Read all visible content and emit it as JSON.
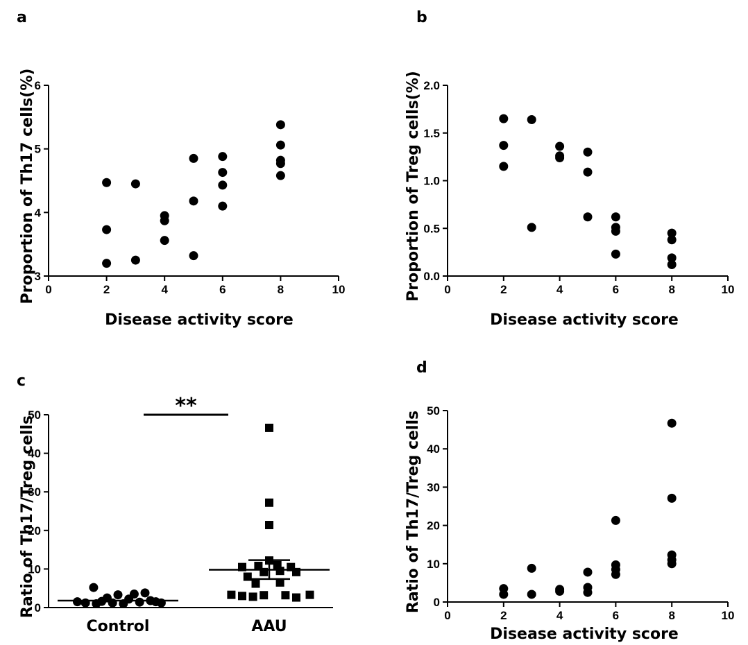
{
  "chart_data": [
    {
      "panel": "a",
      "type": "scatter",
      "xlabel": "Disease  activity  score",
      "ylabel": "Proportion  of  Th17  cells(%)",
      "xlim": [
        0,
        10
      ],
      "ylim": [
        3,
        6
      ],
      "xticks": [
        "0",
        "2",
        "4",
        "6",
        "8",
        "10"
      ],
      "yticks": [
        "3",
        "4",
        "5",
        "6"
      ],
      "points": [
        [
          2,
          4.47
        ],
        [
          2,
          3.73
        ],
        [
          2,
          3.2
        ],
        [
          3,
          4.45
        ],
        [
          3,
          3.25
        ],
        [
          4,
          3.95
        ],
        [
          4,
          3.87
        ],
        [
          4,
          3.56
        ],
        [
          5,
          4.85
        ],
        [
          5,
          4.18
        ],
        [
          5,
          3.32
        ],
        [
          6,
          4.88
        ],
        [
          6,
          4.63
        ],
        [
          6,
          4.43
        ],
        [
          6,
          4.1
        ],
        [
          8,
          5.38
        ],
        [
          8,
          5.06
        ],
        [
          8,
          4.82
        ],
        [
          8,
          4.77
        ],
        [
          8,
          4.58
        ]
      ]
    },
    {
      "panel": "b",
      "type": "scatter",
      "xlabel": "Disease  activity  score",
      "ylabel": "Proportion  of  Treg  cells(%)",
      "xlim": [
        0,
        10
      ],
      "ylim": [
        0,
        2
      ],
      "xticks": [
        "0",
        "2",
        "4",
        "6",
        "8",
        "10"
      ],
      "yticks": [
        "0.0",
        "0.5",
        "1.0",
        "1.5",
        "2.0"
      ],
      "points": [
        [
          2,
          1.65
        ],
        [
          2,
          1.37
        ],
        [
          2,
          1.15
        ],
        [
          3,
          1.64
        ],
        [
          3,
          0.51
        ],
        [
          4,
          1.36
        ],
        [
          4,
          1.26
        ],
        [
          4,
          1.24
        ],
        [
          5,
          1.3
        ],
        [
          5,
          1.09
        ],
        [
          5,
          0.62
        ],
        [
          6,
          0.62
        ],
        [
          6,
          0.51
        ],
        [
          6,
          0.47
        ],
        [
          6,
          0.23
        ],
        [
          8,
          0.45
        ],
        [
          8,
          0.38
        ],
        [
          8,
          0.19
        ],
        [
          8,
          0.12
        ]
      ]
    },
    {
      "panel": "c",
      "type": "scatter",
      "xlabel": "",
      "ylabel": "Ratio  of  Th17/Treg  cells",
      "ylim": [
        0,
        50
      ],
      "categories": [
        "Control",
        "AAU"
      ],
      "yticks": [
        "0",
        "10",
        "20",
        "30",
        "40",
        "50"
      ],
      "significance": "**",
      "series": [
        {
          "marker": "circle",
          "mean": 1.8,
          "points": [
            [
              -0.75,
              1.5
            ],
            [
              -0.6,
              1.2
            ],
            [
              -0.45,
              5.2
            ],
            [
              -0.4,
              1.0
            ],
            [
              -0.3,
              1.6
            ],
            [
              -0.2,
              2.5
            ],
            [
              -0.1,
              1.2
            ],
            [
              0.0,
              3.3
            ],
            [
              0.1,
              1.0
            ],
            [
              0.2,
              2.2
            ],
            [
              0.3,
              3.5
            ],
            [
              0.4,
              1.4
            ],
            [
              0.5,
              3.8
            ],
            [
              0.6,
              1.8
            ],
            [
              0.7,
              1.5
            ],
            [
              0.8,
              1.2
            ]
          ]
        },
        {
          "marker": "square",
          "mean": 9.8,
          "sem": [
            7.4,
            12.3
          ],
          "points": [
            [
              0.0,
              46.6
            ],
            [
              0.0,
              27.2
            ],
            [
              0.0,
              21.4
            ],
            [
              0.0,
              12.2
            ],
            [
              -0.7,
              3.3
            ],
            [
              -0.5,
              3.0
            ],
            [
              -0.3,
              2.8
            ],
            [
              -0.1,
              3.2
            ],
            [
              0.3,
              3.2
            ],
            [
              0.5,
              2.6
            ],
            [
              0.75,
              3.3
            ],
            [
              -0.4,
              8.0
            ],
            [
              -0.1,
              9.2
            ],
            [
              0.2,
              9.5
            ],
            [
              0.5,
              9.2
            ],
            [
              -0.5,
              10.5
            ],
            [
              -0.2,
              10.8
            ],
            [
              0.15,
              11.0
            ],
            [
              0.4,
              10.5
            ],
            [
              -0.25,
              6.2
            ],
            [
              0.2,
              6.5
            ]
          ]
        }
      ]
    },
    {
      "panel": "d",
      "type": "scatter",
      "xlabel": "Disease  activity  score",
      "ylabel": "Ratio  of  Th17/Treg  cells",
      "xlim": [
        0,
        10
      ],
      "ylim": [
        0,
        50
      ],
      "xticks": [
        "0",
        "2",
        "4",
        "6",
        "8",
        "10"
      ],
      "yticks": [
        "0",
        "10",
        "20",
        "30",
        "40",
        "50"
      ],
      "points": [
        [
          2,
          3.5
        ],
        [
          2,
          2.0
        ],
        [
          3,
          8.8
        ],
        [
          3,
          2.0
        ],
        [
          4,
          3.3
        ],
        [
          4,
          2.8
        ],
        [
          5,
          7.8
        ],
        [
          5,
          3.8
        ],
        [
          5,
          2.5
        ],
        [
          6,
          21.3
        ],
        [
          6,
          9.7
        ],
        [
          6,
          8.5
        ],
        [
          6,
          7.2
        ],
        [
          8,
          46.7
        ],
        [
          8,
          27.1
        ],
        [
          8,
          12.3
        ],
        [
          8,
          11.0
        ],
        [
          8,
          10.0
        ]
      ]
    }
  ]
}
